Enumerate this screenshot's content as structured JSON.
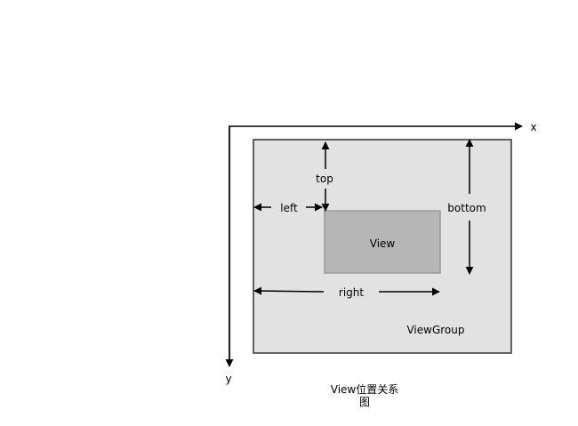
{
  "axes": {
    "x_label": "x",
    "y_label": "y"
  },
  "viewgroup": {
    "label": "ViewGroup",
    "fill": "#e2e2e2",
    "stroke": "#333333"
  },
  "view": {
    "label": "View",
    "fill": "#b6b6b6",
    "stroke": "#999999"
  },
  "dimensions": {
    "top": "top",
    "left": "left",
    "right": "right",
    "bottom": "bottom"
  },
  "caption": {
    "line1": "View位置关系",
    "line2": "图"
  }
}
